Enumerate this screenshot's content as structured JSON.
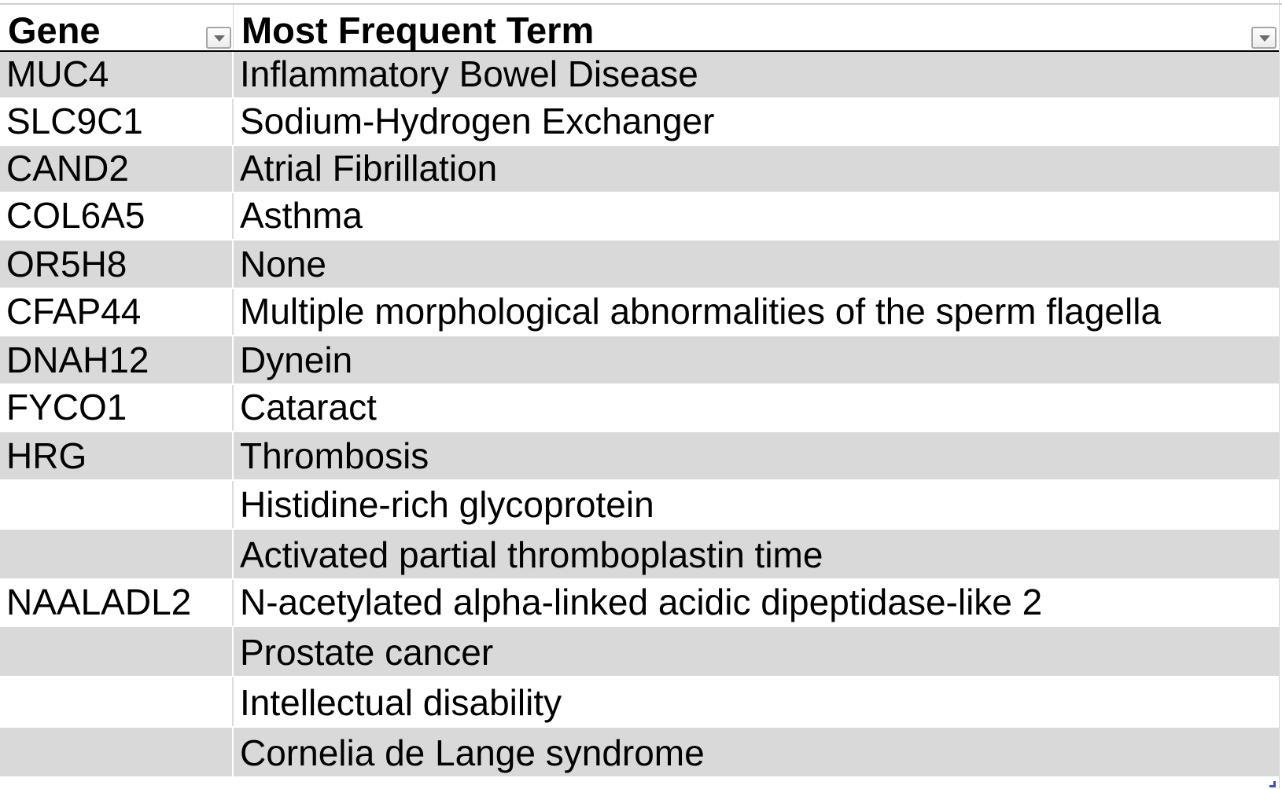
{
  "table": {
    "headers": {
      "gene": "Gene",
      "term": "Most Frequent Term"
    },
    "rows": [
      {
        "gene": "MUC4",
        "term": "Inflammatory Bowel Disease"
      },
      {
        "gene": "SLC9C1",
        "term": "Sodium-Hydrogen Exchanger"
      },
      {
        "gene": "CAND2",
        "term": "Atrial Fibrillation"
      },
      {
        "gene": "COL6A5",
        "term": "Asthma"
      },
      {
        "gene": "OR5H8",
        "term": "None"
      },
      {
        "gene": "CFAP44",
        "term": "Multiple morphological abnormalities of the sperm flagella"
      },
      {
        "gene": "DNAH12",
        "term": "Dynein"
      },
      {
        "gene": "FYCO1",
        "term": "Cataract"
      },
      {
        "gene": "HRG",
        "term": "Thrombosis"
      },
      {
        "gene": "",
        "term": "Histidine-rich glycoprotein"
      },
      {
        "gene": "",
        "term": "Activated partial thromboplastin time"
      },
      {
        "gene": "NAALADL2",
        "term": "N-acetylated alpha-linked acidic dipeptidase-like 2"
      },
      {
        "gene": "",
        "term": "Prostate cancer"
      },
      {
        "gene": "",
        "term": "Intellectual disability"
      },
      {
        "gene": "",
        "term": "Cornelia de Lange syndrome"
      }
    ]
  },
  "colors": {
    "band": "#d9d9d9",
    "plain": "#ffffff",
    "header_rule": "#000000"
  },
  "icons": {
    "filter": "chevron-down-icon"
  }
}
